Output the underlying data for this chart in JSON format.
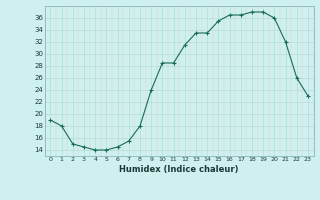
{
  "x": [
    0,
    1,
    2,
    3,
    4,
    5,
    6,
    7,
    8,
    9,
    10,
    11,
    12,
    13,
    14,
    15,
    16,
    17,
    18,
    19,
    20,
    21,
    22,
    23
  ],
  "y": [
    19,
    18,
    15,
    14.5,
    14,
    14,
    14.5,
    15.5,
    18,
    24,
    28.5,
    28.5,
    31.5,
    33.5,
    33.5,
    35.5,
    36.5,
    36.5,
    37,
    37,
    36,
    32,
    26,
    23
  ],
  "xlabel": "Humidex (Indice chaleur)",
  "xlim": [
    -0.5,
    23.5
  ],
  "ylim": [
    13,
    38
  ],
  "yticks": [
    14,
    16,
    18,
    20,
    22,
    24,
    26,
    28,
    30,
    32,
    34,
    36
  ],
  "xticks": [
    0,
    1,
    2,
    3,
    4,
    5,
    6,
    7,
    8,
    9,
    10,
    11,
    12,
    13,
    14,
    15,
    16,
    17,
    18,
    19,
    20,
    21,
    22,
    23
  ],
  "line_color": "#1a6b5a",
  "bg_color": "#cef0ee",
  "grid_major_color": "#b8dbd8",
  "grid_minor_color": "#d8eeec",
  "spine_color": "#7aada8"
}
